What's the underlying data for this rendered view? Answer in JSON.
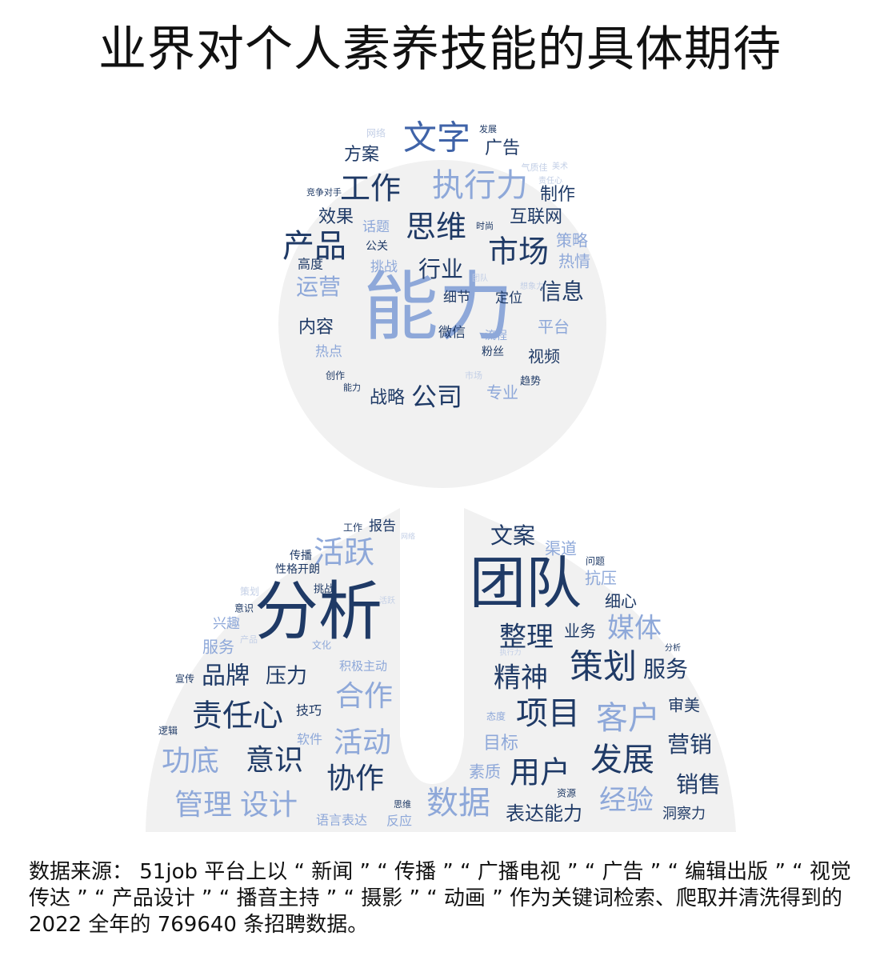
{
  "title": "业界对个人素养技能的具体期待",
  "source": "数据来源： 51job 平台上以 “ 新闻 ” “ 传播 ” “ 广播电视 ” “ 广告 ” “ 编辑出版 ” “ 视觉传达 ” “ 产品设计 ” “ 播音主持 ” “ 摄影 ” “ 动画 ” 作为关键词检索、爬取并清洗得到的 2022 全年的 769640 条招聘数据。",
  "colors": {
    "dark": "#1f3a66",
    "mid": "#3f63a8",
    "light": "#8ea8d9",
    "faint": "#c3cfe6",
    "shape": "#f1f1f1"
  },
  "cloud_top": [
    {
      "t": "能力",
      "tone": "light"
    },
    {
      "t": "文字",
      "tone": "mid"
    },
    {
      "t": "执行力",
      "tone": "light"
    },
    {
      "t": "工作",
      "tone": "dark"
    },
    {
      "t": "思维",
      "tone": "dark"
    },
    {
      "t": "产品",
      "tone": "dark"
    },
    {
      "t": "市场",
      "tone": "dark"
    },
    {
      "t": "运营",
      "tone": "light"
    },
    {
      "t": "行业",
      "tone": "dark"
    },
    {
      "t": "信息",
      "tone": "dark"
    },
    {
      "t": "公司",
      "tone": "dark"
    },
    {
      "t": "方案",
      "tone": "dark"
    },
    {
      "t": "广告",
      "tone": "dark"
    },
    {
      "t": "互联网",
      "tone": "dark"
    },
    {
      "t": "效果",
      "tone": "dark"
    },
    {
      "t": "制作",
      "tone": "dark"
    },
    {
      "t": "策略",
      "tone": "light"
    },
    {
      "t": "热情",
      "tone": "light"
    },
    {
      "t": "平台",
      "tone": "light"
    },
    {
      "t": "内容",
      "tone": "dark"
    },
    {
      "t": "战略",
      "tone": "dark"
    },
    {
      "t": "视频",
      "tone": "dark"
    },
    {
      "t": "话题",
      "tone": "light"
    },
    {
      "t": "挑战",
      "tone": "light"
    },
    {
      "t": "专业",
      "tone": "light"
    },
    {
      "t": "热点",
      "tone": "light"
    },
    {
      "t": "细节",
      "tone": "dark"
    },
    {
      "t": "定位",
      "tone": "dark"
    },
    {
      "t": "微信",
      "tone": "dark"
    },
    {
      "t": "高度",
      "tone": "dark"
    },
    {
      "t": "公关",
      "tone": "dark"
    },
    {
      "t": "粉丝",
      "tone": "dark"
    },
    {
      "t": "流程",
      "tone": "light"
    },
    {
      "t": "趋势",
      "tone": "dark"
    },
    {
      "t": "创作",
      "tone": "dark"
    },
    {
      "t": "能力",
      "tone": "dark"
    },
    {
      "t": "网络",
      "tone": "faint"
    },
    {
      "t": "发展",
      "tone": "dark"
    },
    {
      "t": "竞争对手",
      "tone": "dark"
    },
    {
      "t": "时尚",
      "tone": "dark"
    },
    {
      "t": "气质佳",
      "tone": "faint"
    },
    {
      "t": "责任心",
      "tone": "faint"
    },
    {
      "t": "市场",
      "tone": "faint"
    },
    {
      "t": "美术",
      "tone": "faint"
    },
    {
      "t": "团队",
      "tone": "faint"
    },
    {
      "t": "想象力",
      "tone": "faint"
    }
  ],
  "cloud_bottom": [
    {
      "t": "团队",
      "tone": "dark"
    },
    {
      "t": "分析",
      "tone": "dark"
    },
    {
      "t": "活跃",
      "tone": "light"
    },
    {
      "t": "文案",
      "tone": "dark"
    },
    {
      "t": "报告",
      "tone": "dark"
    },
    {
      "t": "渠道",
      "tone": "light"
    },
    {
      "t": "抗压",
      "tone": "light"
    },
    {
      "t": "细心",
      "tone": "dark"
    },
    {
      "t": "媒体",
      "tone": "light"
    },
    {
      "t": "整理",
      "tone": "dark"
    },
    {
      "t": "业务",
      "tone": "dark"
    },
    {
      "t": "策划",
      "tone": "dark"
    },
    {
      "t": "服务",
      "tone": "dark"
    },
    {
      "t": "精神",
      "tone": "dark"
    },
    {
      "t": "项目",
      "tone": "dark"
    },
    {
      "t": "客户",
      "tone": "light"
    },
    {
      "t": "审美",
      "tone": "dark"
    },
    {
      "t": "营销",
      "tone": "dark"
    },
    {
      "t": "发展",
      "tone": "dark"
    },
    {
      "t": "用户",
      "tone": "dark"
    },
    {
      "t": "销售",
      "tone": "dark"
    },
    {
      "t": "数据",
      "tone": "light"
    },
    {
      "t": "经验",
      "tone": "light"
    },
    {
      "t": "表达能力",
      "tone": "dark"
    },
    {
      "t": "洞察力",
      "tone": "dark"
    },
    {
      "t": "目标",
      "tone": "light"
    },
    {
      "t": "素质",
      "tone": "light"
    },
    {
      "t": "品牌",
      "tone": "dark"
    },
    {
      "t": "压力",
      "tone": "dark"
    },
    {
      "t": "合作",
      "tone": "light"
    },
    {
      "t": "责任心",
      "tone": "dark"
    },
    {
      "t": "意识",
      "tone": "dark"
    },
    {
      "t": "功底",
      "tone": "light"
    },
    {
      "t": "活动",
      "tone": "light"
    },
    {
      "t": "协作",
      "tone": "dark"
    },
    {
      "t": "管理",
      "tone": "light"
    },
    {
      "t": "设计",
      "tone": "light"
    },
    {
      "t": "积极主动",
      "tone": "light"
    },
    {
      "t": "技巧",
      "tone": "dark"
    },
    {
      "t": "软件",
      "tone": "light"
    },
    {
      "t": "服务",
      "tone": "light"
    },
    {
      "t": "兴趣",
      "tone": "light"
    },
    {
      "t": "性格开朗",
      "tone": "dark"
    },
    {
      "t": "挑战",
      "tone": "dark"
    },
    {
      "t": "传播",
      "tone": "dark"
    },
    {
      "t": "语言表达",
      "tone": "light"
    },
    {
      "t": "反应",
      "tone": "light"
    },
    {
      "t": "问题",
      "tone": "dark"
    },
    {
      "t": "文化",
      "tone": "light"
    },
    {
      "t": "态度",
      "tone": "light"
    },
    {
      "t": "资源",
      "tone": "dark"
    },
    {
      "t": "工作",
      "tone": "dark"
    },
    {
      "t": "产品",
      "tone": "faint"
    },
    {
      "t": "思维",
      "tone": "dark"
    },
    {
      "t": "逻辑",
      "tone": "dark"
    },
    {
      "t": "宣传",
      "tone": "dark"
    },
    {
      "t": "执行力",
      "tone": "faint"
    },
    {
      "t": "网络",
      "tone": "faint"
    },
    {
      "t": "意识",
      "tone": "dark"
    },
    {
      "t": "策划",
      "tone": "faint"
    },
    {
      "t": "分析",
      "tone": "dark"
    },
    {
      "t": "活跃",
      "tone": "faint"
    }
  ]
}
